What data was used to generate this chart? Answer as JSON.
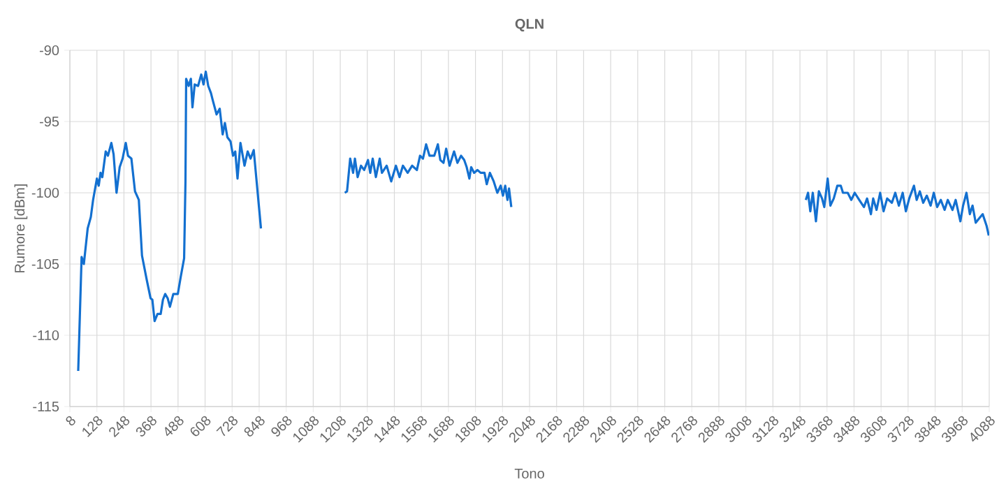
{
  "chart_data": {
    "type": "line",
    "title": "QLN",
    "xlabel": "Tono",
    "ylabel": "Rumore [dBm]",
    "x": [
      45,
      60,
      70,
      87,
      101,
      111,
      128,
      136,
      144,
      152,
      167,
      177,
      192,
      202,
      215,
      229,
      242,
      256,
      266,
      281,
      297,
      314,
      328,
      349,
      366,
      374,
      384,
      397,
      411,
      421,
      431,
      442,
      452,
      467,
      487,
      500,
      515,
      521,
      524,
      535,
      545,
      552,
      562,
      577,
      591,
      601,
      611,
      622,
      634,
      642,
      659,
      673,
      686,
      696,
      707,
      721,
      732,
      742,
      752,
      765,
      783,
      797,
      810,
      824,
      835,
      856,
      1040,
      1228,
      1238,
      1252,
      1265,
      1273,
      1285,
      1300,
      1314,
      1331,
      1341,
      1352,
      1366,
      1383,
      1393,
      1414,
      1434,
      1455,
      1471,
      1486,
      1507,
      1527,
      1548,
      1562,
      1575,
      1589,
      1604,
      1625,
      1641,
      1652,
      1666,
      1678,
      1693,
      1713,
      1728,
      1744,
      1758,
      1769,
      1781,
      1789,
      1802,
      1817,
      1831,
      1848,
      1858,
      1872,
      1889,
      1905,
      1920,
      1930,
      1940,
      1950,
      1957,
      1967,
      2600,
      3274,
      3284,
      3294,
      3305,
      3319,
      3332,
      3346,
      3356,
      3371,
      3383,
      3398,
      3414,
      3429,
      3439,
      3460,
      3476,
      3491,
      3511,
      3532,
      3546,
      3563,
      3573,
      3588,
      3604,
      3619,
      3635,
      3656,
      3671,
      3687,
      3704,
      3718,
      3733,
      3754,
      3766,
      3780,
      3795,
      3811,
      3828,
      3842,
      3857,
      3873,
      3890,
      3904,
      3925,
      3939,
      3960,
      3972,
      3987,
      4002,
      4014,
      4028,
      4043,
      4059,
      4076,
      4086
    ],
    "values": [
      -112.5,
      -104.5,
      -105.0,
      -102.5,
      -101.7,
      -100.5,
      -99.0,
      -99.5,
      -98.6,
      -98.9,
      -97.1,
      -97.4,
      -96.5,
      -97.3,
      -100.0,
      -98.2,
      -97.6,
      -96.5,
      -97.4,
      -97.6,
      -99.9,
      -100.5,
      -104.4,
      -106.1,
      -107.4,
      -107.5,
      -109.0,
      -108.5,
      -108.5,
      -107.5,
      -107.1,
      -107.4,
      -108.0,
      -107.1,
      -107.1,
      -105.9,
      -104.6,
      -99.2,
      -92.0,
      -92.5,
      -92.0,
      -94.0,
      -92.4,
      -92.5,
      -91.7,
      -92.4,
      -91.5,
      -92.5,
      -93.0,
      -93.5,
      -94.5,
      -94.1,
      -95.9,
      -95.1,
      -96.1,
      -96.4,
      -97.4,
      -97.1,
      -99.0,
      -96.5,
      -98.1,
      -97.1,
      -97.6,
      -97.0,
      -98.9,
      -102.5,
      null,
      -100.0,
      -99.9,
      -97.6,
      -98.6,
      -97.6,
      -98.9,
      -98.1,
      -98.4,
      -97.7,
      -98.6,
      -97.6,
      -98.9,
      -97.6,
      -98.6,
      -98.1,
      -99.2,
      -98.1,
      -98.9,
      -98.1,
      -98.6,
      -98.1,
      -98.4,
      -97.4,
      -97.6,
      -96.6,
      -97.4,
      -97.4,
      -96.6,
      -97.7,
      -97.9,
      -96.9,
      -98.1,
      -97.1,
      -97.9,
      -97.4,
      -97.7,
      -98.2,
      -99.0,
      -98.2,
      -98.6,
      -98.4,
      -98.6,
      -98.6,
      -99.4,
      -98.6,
      -99.2,
      -100.0,
      -99.5,
      -100.2,
      -99.5,
      -100.5,
      -99.7,
      -101.0,
      null,
      -100.5,
      -100.0,
      -101.3,
      -100.0,
      -102.0,
      -99.9,
      -100.4,
      -101.0,
      -99.0,
      -100.9,
      -100.4,
      -99.5,
      -99.5,
      -100.0,
      -100.0,
      -100.5,
      -100.0,
      -100.5,
      -101.0,
      -100.4,
      -101.5,
      -100.4,
      -101.2,
      -100.0,
      -101.3,
      -100.4,
      -100.7,
      -100.0,
      -100.9,
      -100.0,
      -101.3,
      -100.4,
      -99.5,
      -100.5,
      -99.9,
      -100.7,
      -100.2,
      -100.9,
      -100.0,
      -101.0,
      -100.5,
      -101.2,
      -100.5,
      -101.2,
      -100.5,
      -102.0,
      -100.9,
      -100.0,
      -101.5,
      -100.9,
      -102.1,
      -101.8,
      -101.5,
      -102.3,
      -103.0
    ],
    "color": "#1370d0",
    "xlim": [
      8,
      4088
    ],
    "xticks": [
      8,
      128,
      248,
      368,
      488,
      608,
      728,
      848,
      968,
      1088,
      1208,
      1328,
      1448,
      1568,
      1688,
      1808,
      1928,
      2048,
      2168,
      2288,
      2408,
      2528,
      2648,
      2768,
      2888,
      3008,
      3128,
      3248,
      3368,
      3488,
      3608,
      3728,
      3848,
      3968,
      4088
    ],
    "ylim": [
      -115,
      -90
    ],
    "yticks": [
      -115,
      -110,
      -105,
      -100,
      -95,
      -90
    ],
    "grid": true,
    "marker": "none",
    "line_style": "solid"
  }
}
